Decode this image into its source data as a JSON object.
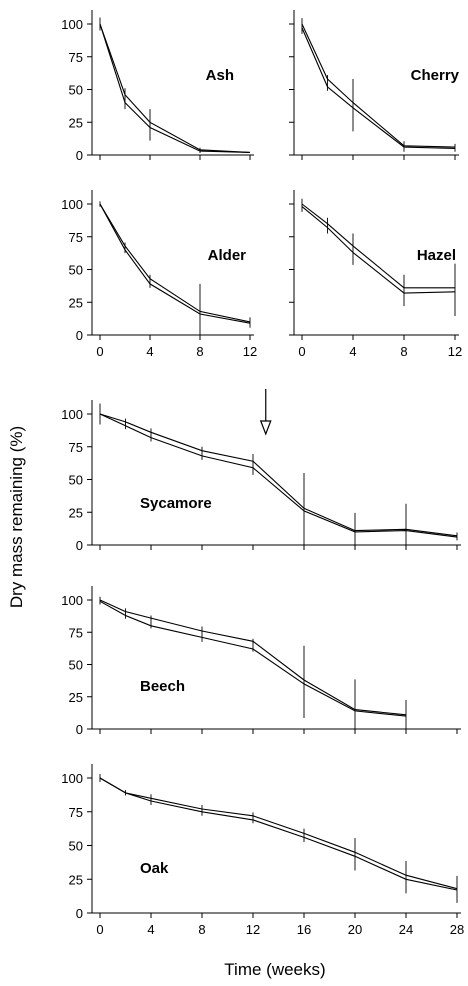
{
  "figure": {
    "ylabel": "Dry  mass remaining (%)",
    "xlabel": "Time (weeks)"
  },
  "chart_data": [
    {
      "type": "line",
      "title": "",
      "label": "Ash",
      "xlabel": "Time (weeks)",
      "ylabel": "Dry  mass remaining (%)",
      "xlim": [
        0,
        12
      ],
      "ylim": [
        0,
        100
      ],
      "x_ticks": [
        0,
        4,
        8,
        12
      ],
      "y_ticks": [
        0,
        25,
        50,
        75,
        100
      ],
      "x": [
        0,
        2,
        4,
        8,
        12
      ],
      "series": [
        {
          "values": [
            100,
            46,
            25,
            4,
            2
          ]
        },
        {
          "values": [
            100,
            40,
            21,
            3,
            2
          ]
        }
      ],
      "errors": [
        5,
        8,
        12,
        2,
        0
      ]
    },
    {
      "type": "line",
      "title": "",
      "label": "Cherry",
      "xlabel": "Time (weeks)",
      "ylabel": "Dry  mass remaining (%)",
      "xlim": [
        0,
        12
      ],
      "ylim": [
        0,
        100
      ],
      "x_ticks": [
        0,
        4,
        8,
        12
      ],
      "y_ticks": [
        0,
        25,
        50,
        75,
        100
      ],
      "x": [
        0,
        2,
        4,
        8,
        12
      ],
      "series": [
        {
          "values": [
            100,
            58,
            40,
            7,
            6
          ]
        },
        {
          "values": [
            97,
            52,
            36,
            6,
            5
          ]
        }
      ],
      "errors": [
        6,
        6,
        20,
        4,
        3
      ]
    },
    {
      "type": "line",
      "title": "",
      "label": "Alder",
      "xlabel": "Time (weeks)",
      "ylabel": "Dry  mass remaining (%)",
      "xlim": [
        0,
        12
      ],
      "ylim": [
        0,
        100
      ],
      "x_ticks": [
        0,
        4,
        8,
        12
      ],
      "y_ticks": [
        0,
        25,
        50,
        75,
        100
      ],
      "x": [
        0,
        2,
        4,
        8,
        12
      ],
      "series": [
        {
          "values": [
            100,
            68,
            43,
            18,
            10
          ]
        },
        {
          "values": [
            100,
            65,
            39,
            16,
            9
          ]
        }
      ],
      "errors": [
        2,
        4,
        5,
        22,
        4
      ]
    },
    {
      "type": "line",
      "title": "",
      "label": "Hazel",
      "xlabel": "Time (weeks)",
      "ylabel": "Dry  mass remaining (%)",
      "xlim": [
        0,
        12
      ],
      "ylim": [
        0,
        100
      ],
      "x_ticks": [
        0,
        4,
        8,
        12
      ],
      "y_ticks": [
        0,
        25,
        50,
        75,
        100
      ],
      "x": [
        0,
        2,
        4,
        8,
        12
      ],
      "series": [
        {
          "values": [
            100,
            85,
            68,
            36,
            36
          ]
        },
        {
          "values": [
            98,
            82,
            63,
            32,
            33
          ]
        }
      ],
      "errors": [
        5,
        6,
        12,
        12,
        20
      ]
    },
    {
      "type": "line",
      "title": "",
      "label": "Sycamore",
      "xlabel": "Time (weeks)",
      "ylabel": "Dry  mass remaining (%)",
      "xlim": [
        0,
        28
      ],
      "ylim": [
        0,
        100
      ],
      "x_ticks": [
        0,
        4,
        8,
        12,
        16,
        20,
        24,
        28
      ],
      "y_ticks": [
        0,
        25,
        50,
        75,
        100
      ],
      "x": [
        0,
        2,
        4,
        8,
        12,
        16,
        20,
        24,
        28
      ],
      "series": [
        {
          "values": [
            100,
            94,
            86,
            72,
            64,
            28,
            11,
            12,
            7
          ]
        },
        {
          "values": [
            100,
            91,
            82,
            68,
            59,
            26,
            10,
            11,
            6
          ]
        }
      ],
      "errors": [
        8,
        4,
        5,
        5,
        8,
        28,
        14,
        20,
        3
      ],
      "arrow_at_x": 13
    },
    {
      "type": "line",
      "title": "",
      "label": "Beech",
      "xlabel": "Time (weeks)",
      "ylabel": "Dry  mass remaining (%)",
      "xlim": [
        0,
        28
      ],
      "ylim": [
        0,
        100
      ],
      "x_ticks": [
        0,
        4,
        8,
        12,
        16,
        20,
        24,
        28
      ],
      "y_ticks": [
        0,
        25,
        50,
        75,
        100
      ],
      "x": [
        0,
        2,
        4,
        8,
        12,
        16,
        20,
        24
      ],
      "series": [
        {
          "values": [
            100,
            91,
            86,
            76,
            68,
            38,
            15,
            11
          ]
        },
        {
          "values": [
            99,
            88,
            80,
            71,
            62,
            35,
            14,
            10
          ]
        }
      ],
      "errors": [
        3,
        4,
        5,
        6,
        5,
        28,
        24,
        12
      ]
    },
    {
      "type": "line",
      "title": "",
      "label": "Oak",
      "xlabel": "Time (weeks)",
      "ylabel": "Dry  mass remaining (%)",
      "xlim": [
        0,
        28
      ],
      "ylim": [
        0,
        100
      ],
      "x_ticks": [
        0,
        4,
        8,
        12,
        16,
        20,
        24,
        28
      ],
      "y_ticks": [
        0,
        25,
        50,
        75,
        100
      ],
      "x": [
        0,
        2,
        4,
        8,
        12,
        16,
        20,
        24,
        28
      ],
      "series": [
        {
          "values": [
            100,
            89,
            85,
            77,
            72,
            59,
            45,
            28,
            18
          ]
        },
        {
          "values": [
            100,
            89,
            83,
            75,
            69,
            56,
            42,
            25,
            17
          ]
        }
      ],
      "errors": [
        3,
        2,
        4,
        4,
        4,
        5,
        12,
        12,
        10
      ]
    }
  ]
}
